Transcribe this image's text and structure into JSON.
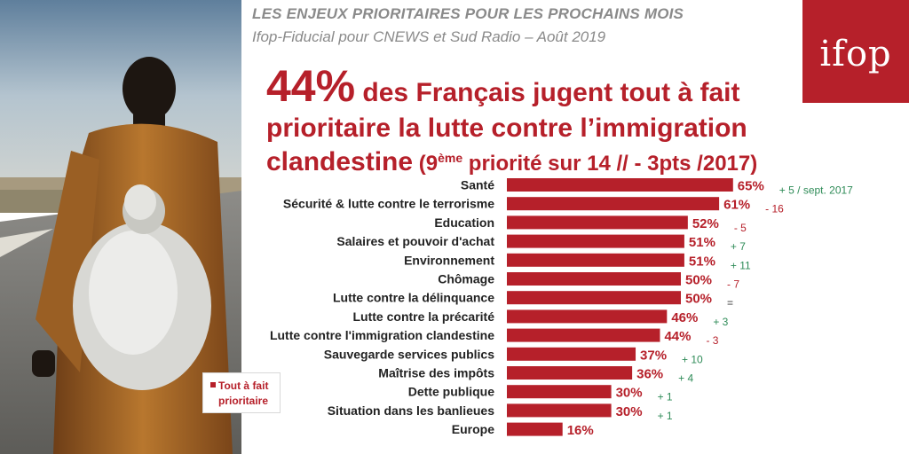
{
  "header": {
    "title": "LES ENJEUX PRIORITAIRES POUR LES PROCHAINS MOIS",
    "subtitle": "Ifop-Fiducial pour CNEWS et Sud Radio – Août 2019"
  },
  "logo": {
    "text": "ifop"
  },
  "headline": {
    "pct": "44%",
    "line1_rest": " des Français jugent tout à fait",
    "line2": "prioritaire la lutte contre l’immigration",
    "line3_main": "clandestine",
    "paren_open": " (9",
    "paren_sup": "ème",
    "paren_rest": " priorité sur 14 // - 3pts /2017)"
  },
  "legend": {
    "label": "Tout à fait prioritaire"
  },
  "colors": {
    "bar": "#b6202a",
    "positive": "#2e8b57",
    "negative": "#b6202a",
    "neutral": "#333333"
  },
  "chart_data": {
    "type": "bar",
    "orientation": "horizontal",
    "categories": [
      "Santé",
      "Sécurité & lutte contre le terrorisme",
      "Education",
      "Salaires et pouvoir d'achat",
      "Environnement",
      "Chômage",
      "Lutte contre la délinquance",
      "Lutte contre la précarité",
      "Lutte contre l'immigration clandestine",
      "Sauvegarde services publics",
      "Maîtrise des impôts",
      "Dette publique",
      "Situation dans les banlieues",
      "Europe"
    ],
    "series": [
      {
        "name": "Tout à fait prioritaire",
        "values": [
          65,
          61,
          52,
          51,
          51,
          50,
          50,
          46,
          44,
          37,
          36,
          30,
          30,
          16
        ]
      }
    ],
    "value_labels": [
      "65%",
      "61%",
      "52%",
      "51%",
      "51%",
      "50%",
      "50%",
      "46%",
      "44%",
      "37%",
      "36%",
      "30%",
      "30%",
      "16%"
    ],
    "changes": [
      "+ 5 / sept. 2017",
      "- 16",
      "- 5",
      "+ 7",
      "+ 11",
      "- 7",
      "=",
      "+ 3",
      "- 3",
      "+ 10",
      "+ 4",
      "+ 1",
      "+ 1",
      ""
    ],
    "change_types": [
      "pos",
      "neg",
      "neg",
      "pos",
      "pos",
      "neg",
      "neutral",
      "pos",
      "neg",
      "pos",
      "pos",
      "pos",
      "pos",
      "none"
    ],
    "xlim": [
      0,
      100
    ],
    "legend": "bottom-left"
  }
}
